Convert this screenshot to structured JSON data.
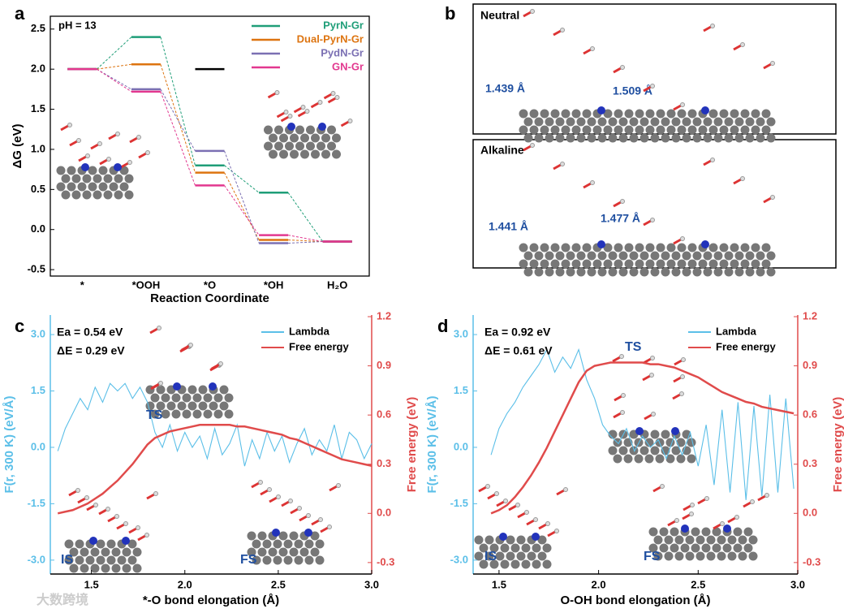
{
  "chart_data": [
    {
      "type": "levels",
      "panel": "a",
      "annotation": "pH = 13",
      "ylabel": "ΔG (eV)",
      "xlabel": "Reaction Coordinate",
      "categories": [
        "*",
        "*OOH",
        "*O",
        "*OH",
        "H₂O"
      ],
      "ylim": [
        -0.58,
        2.66
      ],
      "yticks": [
        {
          "value": -0.5,
          "label": "-0.5"
        },
        {
          "value": 0,
          "label": "0.0"
        },
        0.5,
        {
          "value": 1,
          "label": "1.0"
        },
        1.5,
        {
          "value": 2,
          "label": "2.0"
        },
        2.5
      ],
      "series": [
        {
          "color": "#000000",
          "values": [
            2.0,
            null,
            2.0,
            null,
            -0.15
          ]
        },
        {
          "name": "PyrN-Gr",
          "color": "#1f9e78",
          "values": [
            2.0,
            2.4,
            0.8,
            0.46,
            -0.15
          ]
        },
        {
          "name": "Dual-PyrN-Gr",
          "color": "#dd7410",
          "values": [
            2.0,
            2.06,
            0.71,
            -0.13,
            -0.15
          ]
        },
        {
          "name": "PydN-Gr",
          "color": "#7b70b3",
          "values": [
            2.0,
            1.75,
            0.98,
            -0.17,
            -0.15
          ]
        },
        {
          "name": "GN-Gr",
          "color": "#e2388f",
          "values": [
            2.0,
            1.72,
            0.55,
            -0.07,
            -0.15
          ]
        }
      ]
    },
    {
      "type": "dual_line",
      "panel": "c",
      "annotations": [
        "Ea = 0.54 eV",
        "ΔE = 0.29 eV",
        "TS",
        "IS",
        "FS"
      ],
      "xlabel": "*-O bond elongation (Å)",
      "ylabel": "F(r, 300 K) (eV/Å)",
      "y2label": "Free energy (eV)",
      "xlim": [
        1.28,
        3.0
      ],
      "xticks": [
        1.5,
        {
          "value": 2,
          "label": "2.0"
        },
        2.5,
        {
          "value": 3,
          "label": "3.0"
        }
      ],
      "ylim": [
        -3.37,
        3.52
      ],
      "yticks": [
        {
          "value": -3,
          "label": "-3.0"
        },
        -1.5,
        {
          "value": 0,
          "label": "0.0"
        },
        1.5,
        {
          "value": 3,
          "label": "3.0"
        }
      ],
      "y2lim": [
        -0.37,
        1.21
      ],
      "y2ticks": [
        -0.3,
        {
          "value": 0,
          "label": "0.0"
        },
        0.3,
        0.6,
        0.9,
        1.2
      ],
      "x": [
        1.32,
        1.36,
        1.4,
        1.44,
        1.48,
        1.52,
        1.56,
        1.6,
        1.64,
        1.68,
        1.72,
        1.76,
        1.8,
        1.84,
        1.88,
        1.92,
        1.96,
        2.0,
        2.04,
        2.08,
        2.12,
        2.16,
        2.2,
        2.24,
        2.28,
        2.32,
        2.36,
        2.4,
        2.44,
        2.48,
        2.52,
        2.56,
        2.6,
        2.64,
        2.68,
        2.72,
        2.76,
        2.8,
        2.84,
        2.88,
        2.92,
        2.96,
        3.0
      ],
      "series": [
        {
          "name": "Lambda",
          "color": "#5bbfe8",
          "values": [
            -0.1,
            0.5,
            0.9,
            1.3,
            1.0,
            1.6,
            1.2,
            1.7,
            1.5,
            1.7,
            1.3,
            1.6,
            1.2,
            0.4,
            0.0,
            0.6,
            -0.1,
            0.4,
            0.0,
            0.3,
            -0.3,
            0.5,
            -0.2,
            0.1,
            0.6,
            -0.5,
            0.2,
            -0.3,
            0.4,
            -0.1,
            0.3,
            -0.4,
            0.1,
            0.5,
            -0.2,
            0.2,
            -0.1,
            0.6,
            -0.3,
            0.4,
            0.2,
            -0.3,
            0.1
          ]
        },
        {
          "name": "Free energy",
          "color": "#e04b4b",
          "axis": "y2",
          "values": [
            0,
            0.01,
            0.02,
            0.04,
            0.06,
            0.09,
            0.12,
            0.16,
            0.2,
            0.25,
            0.3,
            0.36,
            0.42,
            0.46,
            0.48,
            0.5,
            0.51,
            0.52,
            0.53,
            0.54,
            0.54,
            0.54,
            0.54,
            0.54,
            0.53,
            0.53,
            0.52,
            0.51,
            0.5,
            0.49,
            0.48,
            0.46,
            0.45,
            0.43,
            0.41,
            0.39,
            0.37,
            0.35,
            0.33,
            0.32,
            0.31,
            0.3,
            0.29
          ]
        }
      ]
    },
    {
      "type": "dual_line",
      "panel": "d",
      "annotations": [
        "Ea = 0.92 eV",
        "ΔE = 0.61 eV",
        "TS",
        "IS",
        "FS"
      ],
      "xlabel": "O-OH bond elongation (Å)",
      "ylabel": "F(r, 300 K) (eV/Å)",
      "y2label": "Free energy (eV)",
      "xlim": [
        1.37,
        3.0
      ],
      "xticks": [
        1.5,
        {
          "value": 2,
          "label": "2.0"
        },
        2.5,
        {
          "value": 3,
          "label": "3.0"
        }
      ],
      "ylim": [
        -3.37,
        3.52
      ],
      "yticks": [
        {
          "value": -3,
          "label": "-3.0"
        },
        -1.5,
        {
          "value": 0,
          "label": "0.0"
        },
        1.5,
        {
          "value": 3,
          "label": "3.0"
        }
      ],
      "y2lim": [
        -0.37,
        1.21
      ],
      "y2ticks": [
        -0.3,
        {
          "value": 0,
          "label": "0.0"
        },
        0.3,
        0.6,
        0.9,
        1.2
      ],
      "x": [
        1.46,
        1.5,
        1.54,
        1.58,
        1.62,
        1.66,
        1.7,
        1.74,
        1.78,
        1.82,
        1.86,
        1.9,
        1.94,
        1.98,
        2.02,
        2.06,
        2.1,
        2.14,
        2.18,
        2.22,
        2.26,
        2.3,
        2.34,
        2.38,
        2.42,
        2.46,
        2.5,
        2.54,
        2.58,
        2.62,
        2.66,
        2.7,
        2.74,
        2.78,
        2.82,
        2.86,
        2.9,
        2.94,
        2.98
      ],
      "series": [
        {
          "name": "Lambda",
          "color": "#5bbfe8",
          "values": [
            -0.2,
            0.5,
            0.9,
            1.2,
            1.6,
            1.9,
            2.2,
            2.6,
            2.0,
            2.4,
            2.1,
            2.6,
            1.8,
            1.3,
            0.6,
            0.3,
            0.1,
            0.5,
            -0.1,
            0.3,
            0.0,
            0.2,
            -0.3,
            0.3,
            -0.2,
            0.4,
            -0.5,
            0.6,
            -1.0,
            1.0,
            -1.2,
            1.2,
            -1.4,
            1.1,
            -1.3,
            1.4,
            -1.2,
            1.3,
            -1.1
          ]
        },
        {
          "name": "Free energy",
          "color": "#e04b4b",
          "axis": "y2",
          "values": [
            0,
            0.02,
            0.05,
            0.1,
            0.16,
            0.23,
            0.31,
            0.4,
            0.5,
            0.6,
            0.7,
            0.8,
            0.87,
            0.9,
            0.91,
            0.92,
            0.92,
            0.92,
            0.92,
            0.92,
            0.91,
            0.91,
            0.9,
            0.89,
            0.87,
            0.85,
            0.83,
            0.8,
            0.77,
            0.74,
            0.72,
            0.7,
            0.68,
            0.67,
            0.65,
            0.64,
            0.63,
            0.62,
            0.61
          ]
        }
      ]
    }
  ],
  "panel_b": {
    "panel": "b",
    "neutral": {
      "title": "Neutral",
      "left": "1.439 Å",
      "right": "1.509 Å"
    },
    "alkaline": {
      "title": "Alkaline",
      "left": "1.441 Å",
      "right": "1.477 Å"
    }
  },
  "watermark": "大数跨境"
}
